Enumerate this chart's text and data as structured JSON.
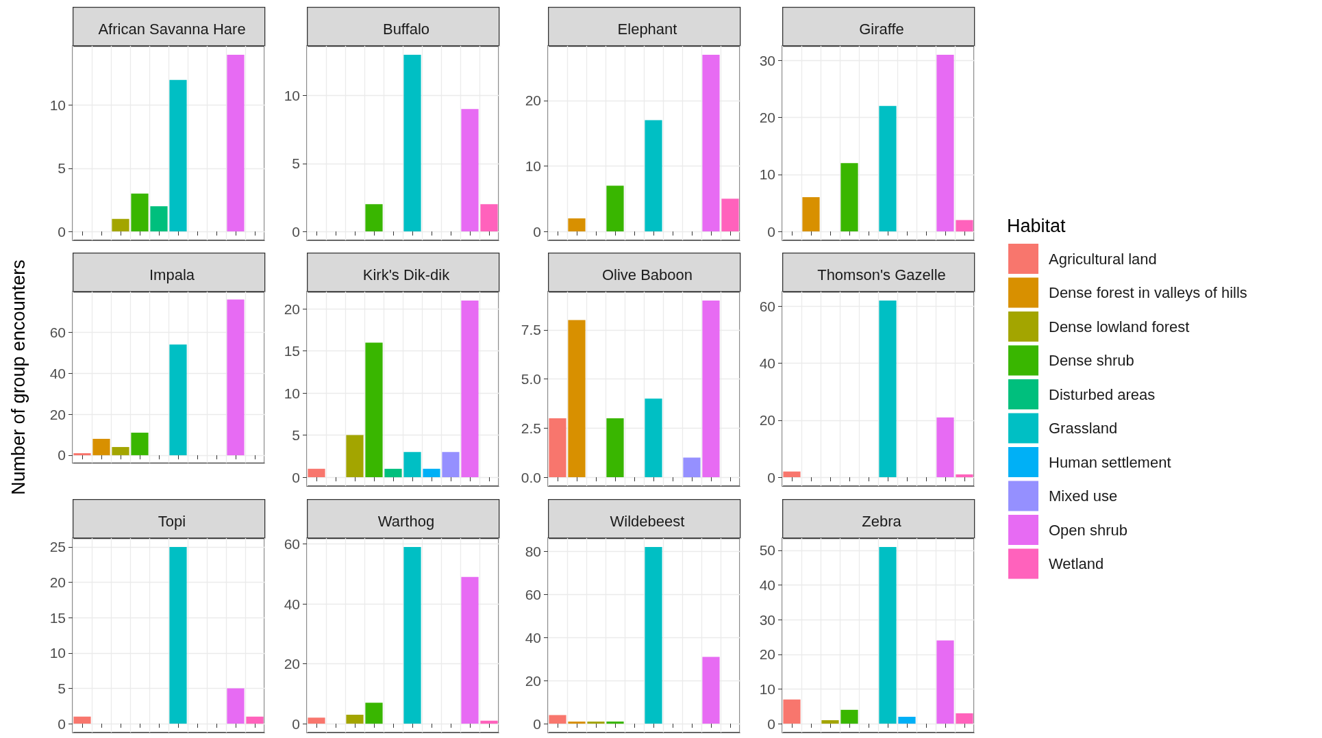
{
  "chart_data": [
    {
      "type": "bar",
      "title": "African Savanna Hare",
      "categories": [
        null,
        null,
        null,
        null,
        null,
        null,
        null,
        null,
        null,
        null
      ],
      "ylim": [
        -0.7,
        14.7
      ],
      "yticks": [
        0,
        5,
        10
      ],
      "grid": true,
      "tick_labels": "y",
      "series": [
        {
          "color": "#a3a500",
          "values": [
            null,
            null,
            1,
            null,
            null,
            null,
            null,
            null,
            null,
            null
          ]
        },
        {
          "color": "#39b600",
          "values": [
            null,
            null,
            null,
            3,
            null,
            null,
            null,
            null,
            null,
            null
          ]
        },
        {
          "color": "#00bf7d",
          "values": [
            null,
            null,
            null,
            null,
            2,
            null,
            null,
            null,
            null,
            null
          ]
        },
        {
          "color": "#00bfc4",
          "values": [
            null,
            null,
            null,
            null,
            null,
            12,
            null,
            null,
            null,
            null
          ]
        },
        {
          "color": "#e76bf3",
          "values": [
            null,
            null,
            null,
            null,
            null,
            null,
            null,
            null,
            14,
            null
          ]
        }
      ]
    },
    {
      "type": "bar",
      "title": "Buffalo",
      "categories": [
        null,
        null,
        null,
        null,
        null,
        null,
        null,
        null,
        null,
        null
      ],
      "ylim": [
        -0.65,
        13.65
      ],
      "yticks": [
        0,
        5,
        10
      ],
      "grid": true,
      "tick_labels": "y",
      "series": [
        {
          "color": "#39b600",
          "values": [
            null,
            null,
            null,
            2,
            null,
            null,
            null,
            null,
            null,
            null
          ]
        },
        {
          "color": "#00bfc4",
          "values": [
            null,
            null,
            null,
            null,
            null,
            13,
            null,
            null,
            null,
            null
          ]
        },
        {
          "color": "#e76bf3",
          "values": [
            null,
            null,
            null,
            null,
            null,
            null,
            null,
            null,
            9,
            null
          ]
        },
        {
          "color": "#ff62bc",
          "values": [
            null,
            null,
            null,
            null,
            null,
            null,
            null,
            null,
            null,
            2
          ]
        }
      ]
    },
    {
      "type": "bar",
      "title": "Elephant",
      "categories": [
        null,
        null,
        null,
        null,
        null,
        null,
        null,
        null,
        null,
        null
      ],
      "ylim": [
        -1.35,
        28.35
      ],
      "yticks": [
        0,
        10,
        20
      ],
      "grid": true,
      "tick_labels": "y",
      "series": [
        {
          "color": "#d89000",
          "values": [
            null,
            2,
            null,
            null,
            null,
            null,
            null,
            null,
            null,
            null
          ]
        },
        {
          "color": "#39b600",
          "values": [
            null,
            null,
            null,
            7,
            null,
            null,
            null,
            null,
            null,
            null
          ]
        },
        {
          "color": "#00bfc4",
          "values": [
            null,
            null,
            null,
            null,
            null,
            17,
            null,
            null,
            null,
            null
          ]
        },
        {
          "color": "#e76bf3",
          "values": [
            null,
            null,
            null,
            null,
            null,
            null,
            null,
            null,
            27,
            null
          ]
        },
        {
          "color": "#ff62bc",
          "values": [
            null,
            null,
            null,
            null,
            null,
            null,
            null,
            null,
            null,
            5
          ]
        }
      ]
    },
    {
      "type": "bar",
      "title": "Giraffe",
      "categories": [
        null,
        null,
        null,
        null,
        null,
        null,
        null,
        null,
        null,
        null
      ],
      "ylim": [
        -1.55,
        32.55
      ],
      "yticks": [
        0,
        10,
        20,
        30
      ],
      "grid": true,
      "tick_labels": "y",
      "series": [
        {
          "color": "#d89000",
          "values": [
            null,
            6,
            null,
            null,
            null,
            null,
            null,
            null,
            null,
            null
          ]
        },
        {
          "color": "#39b600",
          "values": [
            null,
            null,
            null,
            12,
            null,
            null,
            null,
            null,
            null,
            null
          ]
        },
        {
          "color": "#00bfc4",
          "values": [
            null,
            null,
            null,
            null,
            null,
            22,
            null,
            null,
            null,
            null
          ]
        },
        {
          "color": "#e76bf3",
          "values": [
            null,
            null,
            null,
            null,
            null,
            null,
            null,
            null,
            31,
            null
          ]
        },
        {
          "color": "#ff62bc",
          "values": [
            null,
            null,
            null,
            null,
            null,
            null,
            null,
            null,
            null,
            2
          ]
        }
      ]
    },
    {
      "type": "bar",
      "title": "Impala",
      "ylabel": "Number of group encounters",
      "categories": [
        null,
        null,
        null,
        null,
        null,
        null,
        null,
        null,
        null,
        null
      ],
      "ylim": [
        -3.8,
        79.8
      ],
      "yticks": [
        0,
        20,
        40,
        60
      ],
      "grid": true,
      "tick_labels": "y",
      "series": [
        {
          "color": "#f8766d",
          "values": [
            1,
            null,
            null,
            null,
            null,
            null,
            null,
            null,
            null,
            null
          ]
        },
        {
          "color": "#d89000",
          "values": [
            null,
            8,
            null,
            null,
            null,
            null,
            null,
            null,
            null,
            null
          ]
        },
        {
          "color": "#a3a500",
          "values": [
            null,
            null,
            4,
            null,
            null,
            null,
            null,
            null,
            null,
            null
          ]
        },
        {
          "color": "#39b600",
          "values": [
            null,
            null,
            null,
            11,
            null,
            null,
            null,
            null,
            null,
            null
          ]
        },
        {
          "color": "#00bfc4",
          "values": [
            null,
            null,
            null,
            null,
            null,
            54,
            null,
            null,
            null,
            null
          ]
        },
        {
          "color": "#e76bf3",
          "values": [
            null,
            null,
            null,
            null,
            null,
            null,
            null,
            null,
            76,
            null
          ]
        }
      ]
    },
    {
      "type": "bar",
      "title": "Kirk's Dik-dik",
      "categories": [
        null,
        null,
        null,
        null,
        null,
        null,
        null,
        null,
        null,
        null
      ],
      "ylim": [
        -1.05,
        22.05
      ],
      "yticks": [
        0,
        5,
        10,
        15,
        20
      ],
      "grid": true,
      "tick_labels": "y",
      "series": [
        {
          "color": "#f8766d",
          "values": [
            1,
            null,
            null,
            null,
            null,
            null,
            null,
            null,
            null,
            null
          ]
        },
        {
          "color": "#a3a500",
          "values": [
            null,
            null,
            5,
            null,
            null,
            null,
            null,
            null,
            null,
            null
          ]
        },
        {
          "color": "#39b600",
          "values": [
            null,
            null,
            null,
            16,
            null,
            null,
            null,
            null,
            null,
            null
          ]
        },
        {
          "color": "#00bf7d",
          "values": [
            null,
            null,
            null,
            null,
            1,
            null,
            null,
            null,
            null,
            null
          ]
        },
        {
          "color": "#00bfc4",
          "values": [
            null,
            null,
            null,
            null,
            null,
            3,
            null,
            null,
            null,
            null
          ]
        },
        {
          "color": "#00b0f6",
          "values": [
            null,
            null,
            null,
            null,
            null,
            null,
            1,
            null,
            null,
            null
          ]
        },
        {
          "color": "#9590ff",
          "values": [
            null,
            null,
            null,
            null,
            null,
            null,
            null,
            3,
            null,
            null
          ]
        },
        {
          "color": "#e76bf3",
          "values": [
            null,
            null,
            null,
            null,
            null,
            null,
            null,
            null,
            21,
            null
          ]
        }
      ]
    },
    {
      "type": "bar",
      "title": "Olive Baboon",
      "categories": [
        null,
        null,
        null,
        null,
        null,
        null,
        null,
        null,
        null,
        null
      ],
      "ylim": [
        -0.45,
        9.45
      ],
      "yticks": [
        {
          "value": 0,
          "label": "0.0"
        },
        {
          "value": 2.5,
          "label": "2.5"
        },
        {
          "value": 5,
          "label": "5.0"
        },
        {
          "value": 7.5,
          "label": "7.5"
        }
      ],
      "grid": true,
      "tick_labels": "y",
      "series": [
        {
          "color": "#f8766d",
          "values": [
            3,
            null,
            null,
            null,
            null,
            null,
            null,
            null,
            null,
            null
          ]
        },
        {
          "color": "#d89000",
          "values": [
            null,
            8,
            null,
            null,
            null,
            null,
            null,
            null,
            null,
            null
          ]
        },
        {
          "color": "#39b600",
          "values": [
            null,
            null,
            null,
            3,
            null,
            null,
            null,
            null,
            null,
            null
          ]
        },
        {
          "color": "#00bfc4",
          "values": [
            null,
            null,
            null,
            null,
            null,
            4,
            null,
            null,
            null,
            null
          ]
        },
        {
          "color": "#9590ff",
          "values": [
            null,
            null,
            null,
            null,
            null,
            null,
            null,
            1,
            null,
            null
          ]
        },
        {
          "color": "#e76bf3",
          "values": [
            null,
            null,
            null,
            null,
            null,
            null,
            null,
            null,
            9,
            null
          ]
        }
      ]
    },
    {
      "type": "bar",
      "title": "Thomson's Gazelle",
      "legend": "right",
      "legend_title": "Habitat",
      "categories": [
        null,
        null,
        null,
        null,
        null,
        null,
        null,
        null,
        null,
        null
      ],
      "ylim": [
        -3.1,
        65.1
      ],
      "yticks": [
        0,
        20,
        40,
        60
      ],
      "grid": true,
      "tick_labels": "y",
      "series": [
        {
          "name": "Agricultural land",
          "color": "#f8766d",
          "values": [
            2,
            null,
            null,
            null,
            null,
            null,
            null,
            null,
            null,
            null
          ]
        },
        {
          "name": "Dense forest in valleys of hills",
          "color": "#d89000",
          "values": [
            null,
            null,
            null,
            null,
            null,
            null,
            null,
            null,
            null,
            null
          ]
        },
        {
          "name": "Dense lowland forest",
          "color": "#a3a500",
          "values": [
            null,
            null,
            null,
            null,
            null,
            null,
            null,
            null,
            null,
            null
          ]
        },
        {
          "name": "Dense shrub",
          "color": "#39b600",
          "values": [
            null,
            null,
            null,
            null,
            null,
            null,
            null,
            null,
            null,
            null
          ]
        },
        {
          "name": "Disturbed areas",
          "color": "#00bf7d",
          "values": [
            null,
            null,
            null,
            null,
            null,
            null,
            null,
            null,
            null,
            null
          ]
        },
        {
          "name": "Grassland",
          "color": "#00bfc4",
          "values": [
            null,
            null,
            null,
            null,
            null,
            62,
            null,
            null,
            null,
            null
          ]
        },
        {
          "name": "Human settlement",
          "color": "#00b0f6",
          "values": [
            null,
            null,
            null,
            null,
            null,
            null,
            null,
            null,
            null,
            null
          ]
        },
        {
          "name": "Mixed use",
          "color": "#9590ff",
          "values": [
            null,
            null,
            null,
            null,
            null,
            null,
            null,
            null,
            null,
            null
          ]
        },
        {
          "name": "Open shrub",
          "color": "#e76bf3",
          "values": [
            null,
            null,
            null,
            null,
            null,
            null,
            null,
            null,
            21,
            null
          ]
        },
        {
          "name": "Wetland",
          "color": "#ff62bc",
          "values": [
            null,
            null,
            null,
            null,
            null,
            null,
            null,
            null,
            null,
            1
          ]
        }
      ]
    },
    {
      "type": "bar",
      "title": "Topi",
      "categories": [
        null,
        null,
        null,
        null,
        null,
        null,
        null,
        null,
        null,
        null
      ],
      "ylim": [
        -1.25,
        26.25
      ],
      "yticks": [
        0,
        5,
        10,
        15,
        20,
        25
      ],
      "grid": true,
      "tick_labels": "y",
      "series": [
        {
          "color": "#f8766d",
          "values": [
            1,
            null,
            null,
            null,
            null,
            null,
            null,
            null,
            null,
            null
          ]
        },
        {
          "color": "#00bfc4",
          "values": [
            null,
            null,
            null,
            null,
            null,
            25,
            null,
            null,
            null,
            null
          ]
        },
        {
          "color": "#e76bf3",
          "values": [
            null,
            null,
            null,
            null,
            null,
            null,
            null,
            null,
            5,
            null
          ]
        },
        {
          "color": "#ff62bc",
          "values": [
            null,
            null,
            null,
            null,
            null,
            null,
            null,
            null,
            null,
            1
          ]
        }
      ]
    },
    {
      "type": "bar",
      "title": "Warthog",
      "categories": [
        null,
        null,
        null,
        null,
        null,
        null,
        null,
        null,
        null,
        null
      ],
      "ylim": [
        -2.95,
        61.95
      ],
      "yticks": [
        0,
        20,
        40,
        60
      ],
      "grid": true,
      "tick_labels": "y",
      "series": [
        {
          "color": "#f8766d",
          "values": [
            2,
            null,
            null,
            null,
            null,
            null,
            null,
            null,
            null,
            null
          ]
        },
        {
          "color": "#a3a500",
          "values": [
            null,
            null,
            3,
            null,
            null,
            null,
            null,
            null,
            null,
            null
          ]
        },
        {
          "color": "#39b600",
          "values": [
            null,
            null,
            null,
            7,
            null,
            null,
            null,
            null,
            null,
            null
          ]
        },
        {
          "color": "#00bfc4",
          "values": [
            null,
            null,
            null,
            null,
            null,
            59,
            null,
            null,
            null,
            null
          ]
        },
        {
          "color": "#e76bf3",
          "values": [
            null,
            null,
            null,
            null,
            null,
            null,
            null,
            null,
            49,
            null
          ]
        },
        {
          "color": "#ff62bc",
          "values": [
            null,
            null,
            null,
            null,
            null,
            null,
            null,
            null,
            null,
            1
          ]
        }
      ]
    },
    {
      "type": "bar",
      "title": "Wildebeest",
      "categories": [
        null,
        null,
        null,
        null,
        null,
        null,
        null,
        null,
        null,
        null
      ],
      "ylim": [
        -4.1,
        86.1
      ],
      "yticks": [
        0,
        20,
        40,
        60,
        80
      ],
      "grid": true,
      "tick_labels": "y",
      "series": [
        {
          "color": "#f8766d",
          "values": [
            4,
            null,
            null,
            null,
            null,
            null,
            null,
            null,
            null,
            null
          ]
        },
        {
          "color": "#d89000",
          "values": [
            null,
            1,
            null,
            null,
            null,
            null,
            null,
            null,
            null,
            null
          ]
        },
        {
          "color": "#a3a500",
          "values": [
            null,
            null,
            1,
            null,
            null,
            null,
            null,
            null,
            null,
            null
          ]
        },
        {
          "color": "#39b600",
          "values": [
            null,
            null,
            null,
            1,
            null,
            null,
            null,
            null,
            null,
            null
          ]
        },
        {
          "color": "#00bfc4",
          "values": [
            null,
            null,
            null,
            null,
            null,
            82,
            null,
            null,
            null,
            null
          ]
        },
        {
          "color": "#e76bf3",
          "values": [
            null,
            null,
            null,
            null,
            null,
            null,
            null,
            null,
            31,
            null
          ]
        }
      ]
    },
    {
      "type": "bar",
      "title": "Zebra",
      "categories": [
        null,
        null,
        null,
        null,
        null,
        null,
        null,
        null,
        null,
        null
      ],
      "ylim": [
        -2.55,
        53.55
      ],
      "yticks": [
        0,
        10,
        20,
        30,
        40,
        50
      ],
      "grid": true,
      "tick_labels": "y",
      "series": [
        {
          "color": "#f8766d",
          "values": [
            7,
            null,
            null,
            null,
            null,
            null,
            null,
            null,
            null,
            null
          ]
        },
        {
          "color": "#a3a500",
          "values": [
            null,
            null,
            1,
            null,
            null,
            null,
            null,
            null,
            null,
            null
          ]
        },
        {
          "color": "#39b600",
          "values": [
            null,
            null,
            null,
            4,
            null,
            null,
            null,
            null,
            null,
            null
          ]
        },
        {
          "color": "#00bfc4",
          "values": [
            null,
            null,
            null,
            null,
            null,
            51,
            null,
            null,
            null,
            null
          ]
        },
        {
          "color": "#00b0f6",
          "values": [
            null,
            null,
            null,
            null,
            null,
            null,
            2,
            null,
            null,
            null
          ]
        },
        {
          "color": "#e76bf3",
          "values": [
            null,
            null,
            null,
            null,
            null,
            null,
            null,
            null,
            24,
            null
          ]
        },
        {
          "color": "#ff62bc",
          "values": [
            null,
            null,
            null,
            null,
            null,
            null,
            null,
            null,
            null,
            3
          ]
        }
      ]
    }
  ]
}
